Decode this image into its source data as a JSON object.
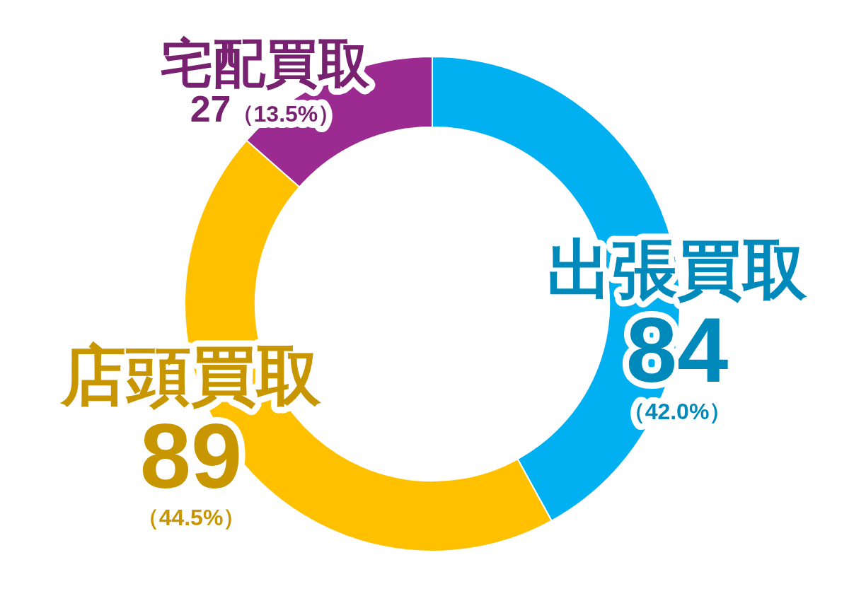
{
  "chart_data": {
    "type": "donut",
    "categories": [
      "出張買取",
      "店頭買取",
      "宅配買取"
    ],
    "values": [
      42.0,
      44.5,
      13.5
    ],
    "colors": [
      "#00b0f0",
      "#ffc000",
      "#9b2a91"
    ],
    "value_labels": [
      "（42.0%）",
      "（44.5%）",
      "（13.5%）"
    ],
    "annotations": [
      "84",
      "89",
      "27"
    ]
  }
}
